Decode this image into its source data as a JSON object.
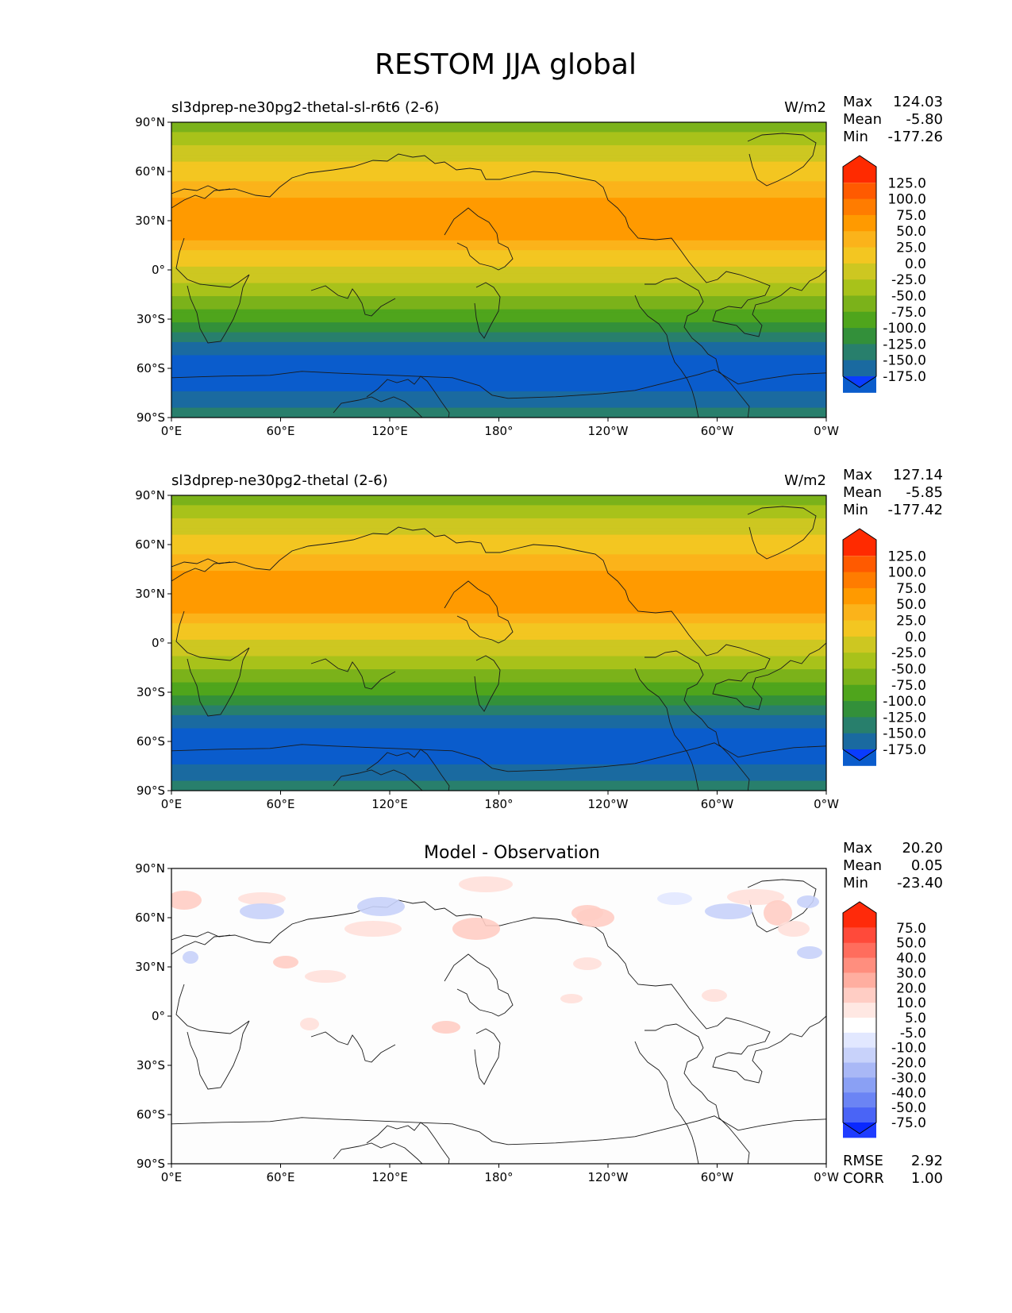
{
  "figure": {
    "title": "RESTOM JJA global"
  },
  "chart_data": [
    {
      "type": "heatmap",
      "panel": "test",
      "title_left": "sl3dprep-ne30pg2-thetal-sl-r6t6 (2-6)",
      "title_center": "",
      "units": "W/m2",
      "stats": [
        {
          "label": "Max",
          "value": "124.03"
        },
        {
          "label": "Mean",
          "value": "-5.80"
        },
        {
          "label": "Min",
          "value": "-177.26"
        }
      ],
      "extra_stats": [],
      "x_ticks": [
        "0°E",
        "60°E",
        "120°E",
        "180°",
        "120°W",
        "60°W",
        "0°W"
      ],
      "y_ticks": [
        "90°N",
        "60°N",
        "30°N",
        "0°",
        "30°S",
        "60°S",
        "90°S"
      ],
      "xlim": [
        0,
        360
      ],
      "ylim": [
        -90,
        90
      ],
      "colorbar": {
        "levels": [
          "125.0",
          "100.0",
          "75.0",
          "50.0",
          "25.0",
          "0.0",
          "-25.0",
          "-50.0",
          "-75.0",
          "-100.0",
          "-125.0",
          "-150.0",
          "-175.0"
        ],
        "colors": [
          "#ff2a00",
          "#ff5a00",
          "#ff7c00",
          "#ff9a00",
          "#fbb31a",
          "#f3c621",
          "#cdc721",
          "#a8c21a",
          "#7bb21a",
          "#4fa51c",
          "#33903a",
          "#287f6c",
          "#1a6aa0",
          "#0a5ccc",
          "#0a3cff"
        ]
      },
      "zonal_profile": {
        "lat": [
          90,
          80,
          70,
          60,
          50,
          40,
          30,
          20,
          10,
          0,
          -10,
          -20,
          -30,
          -40,
          -50,
          -60,
          -70,
          -80,
          -90
        ],
        "value": [
          -40,
          -15,
          15,
          35,
          60,
          85,
          95,
          85,
          40,
          20,
          -5,
          -35,
          -70,
          -110,
          -145,
          -170,
          -165,
          -130,
          -115
        ]
      }
    },
    {
      "type": "heatmap",
      "panel": "reference",
      "title_left": "sl3dprep-ne30pg2-thetal (2-6)",
      "title_center": "",
      "units": "W/m2",
      "stats": [
        {
          "label": "Max",
          "value": "127.14"
        },
        {
          "label": "Mean",
          "value": "-5.85"
        },
        {
          "label": "Min",
          "value": "-177.42"
        }
      ],
      "extra_stats": [],
      "x_ticks": [
        "0°E",
        "60°E",
        "120°E",
        "180°",
        "120°W",
        "60°W",
        "0°W"
      ],
      "y_ticks": [
        "90°N",
        "60°N",
        "30°N",
        "0°",
        "30°S",
        "60°S",
        "90°S"
      ],
      "xlim": [
        0,
        360
      ],
      "ylim": [
        -90,
        90
      ],
      "colorbar": {
        "levels": [
          "125.0",
          "100.0",
          "75.0",
          "50.0",
          "25.0",
          "0.0",
          "-25.0",
          "-50.0",
          "-75.0",
          "-100.0",
          "-125.0",
          "-150.0",
          "-175.0"
        ],
        "colors": [
          "#ff2a00",
          "#ff5a00",
          "#ff7c00",
          "#ff9a00",
          "#fbb31a",
          "#f3c621",
          "#cdc721",
          "#a8c21a",
          "#7bb21a",
          "#4fa51c",
          "#33903a",
          "#287f6c",
          "#1a6aa0",
          "#0a5ccc",
          "#0a3cff"
        ]
      },
      "zonal_profile": {
        "lat": [
          90,
          80,
          70,
          60,
          50,
          40,
          30,
          20,
          10,
          0,
          -10,
          -20,
          -30,
          -40,
          -50,
          -60,
          -70,
          -80,
          -90
        ],
        "value": [
          -40,
          -15,
          15,
          35,
          60,
          85,
          95,
          85,
          40,
          20,
          -5,
          -35,
          -70,
          -110,
          -145,
          -170,
          -165,
          -130,
          -115
        ]
      }
    },
    {
      "type": "heatmap",
      "panel": "difference",
      "title_left": "",
      "title_center": "Model - Observation",
      "units": "",
      "stats": [
        {
          "label": "Max",
          "value": "20.20"
        },
        {
          "label": "Mean",
          "value": "0.05"
        },
        {
          "label": "Min",
          "value": "-23.40"
        }
      ],
      "extra_stats": [
        {
          "label": "RMSE",
          "value": "2.92"
        },
        {
          "label": "CORR",
          "value": "1.00"
        }
      ],
      "x_ticks": [
        "0°E",
        "60°E",
        "120°E",
        "180°",
        "120°W",
        "60°W",
        "0°W"
      ],
      "y_ticks": [
        "90°N",
        "60°N",
        "30°N",
        "0°",
        "30°S",
        "60°S",
        "90°S"
      ],
      "xlim": [
        0,
        360
      ],
      "ylim": [
        -90,
        90
      ],
      "colorbar": {
        "levels": [
          "75.0",
          "50.0",
          "40.0",
          "30.0",
          "20.0",
          "10.0",
          "5.0",
          "-5.0",
          "-10.0",
          "-20.0",
          "-30.0",
          "-40.0",
          "-50.0",
          "-75.0"
        ],
        "colors": [
          "#ff2a0a",
          "#ff4a3a",
          "#ff6d5d",
          "#ff8e7e",
          "#ffaea0",
          "#ffcdc4",
          "#ffe8e3",
          "#ffffff",
          "#e2e8ff",
          "#c8d2fa",
          "#a9b8f6",
          "#8aa0f4",
          "#6b84f4",
          "#4a64f6",
          "#1f3cff",
          "#0a28ff"
        ]
      }
    }
  ]
}
